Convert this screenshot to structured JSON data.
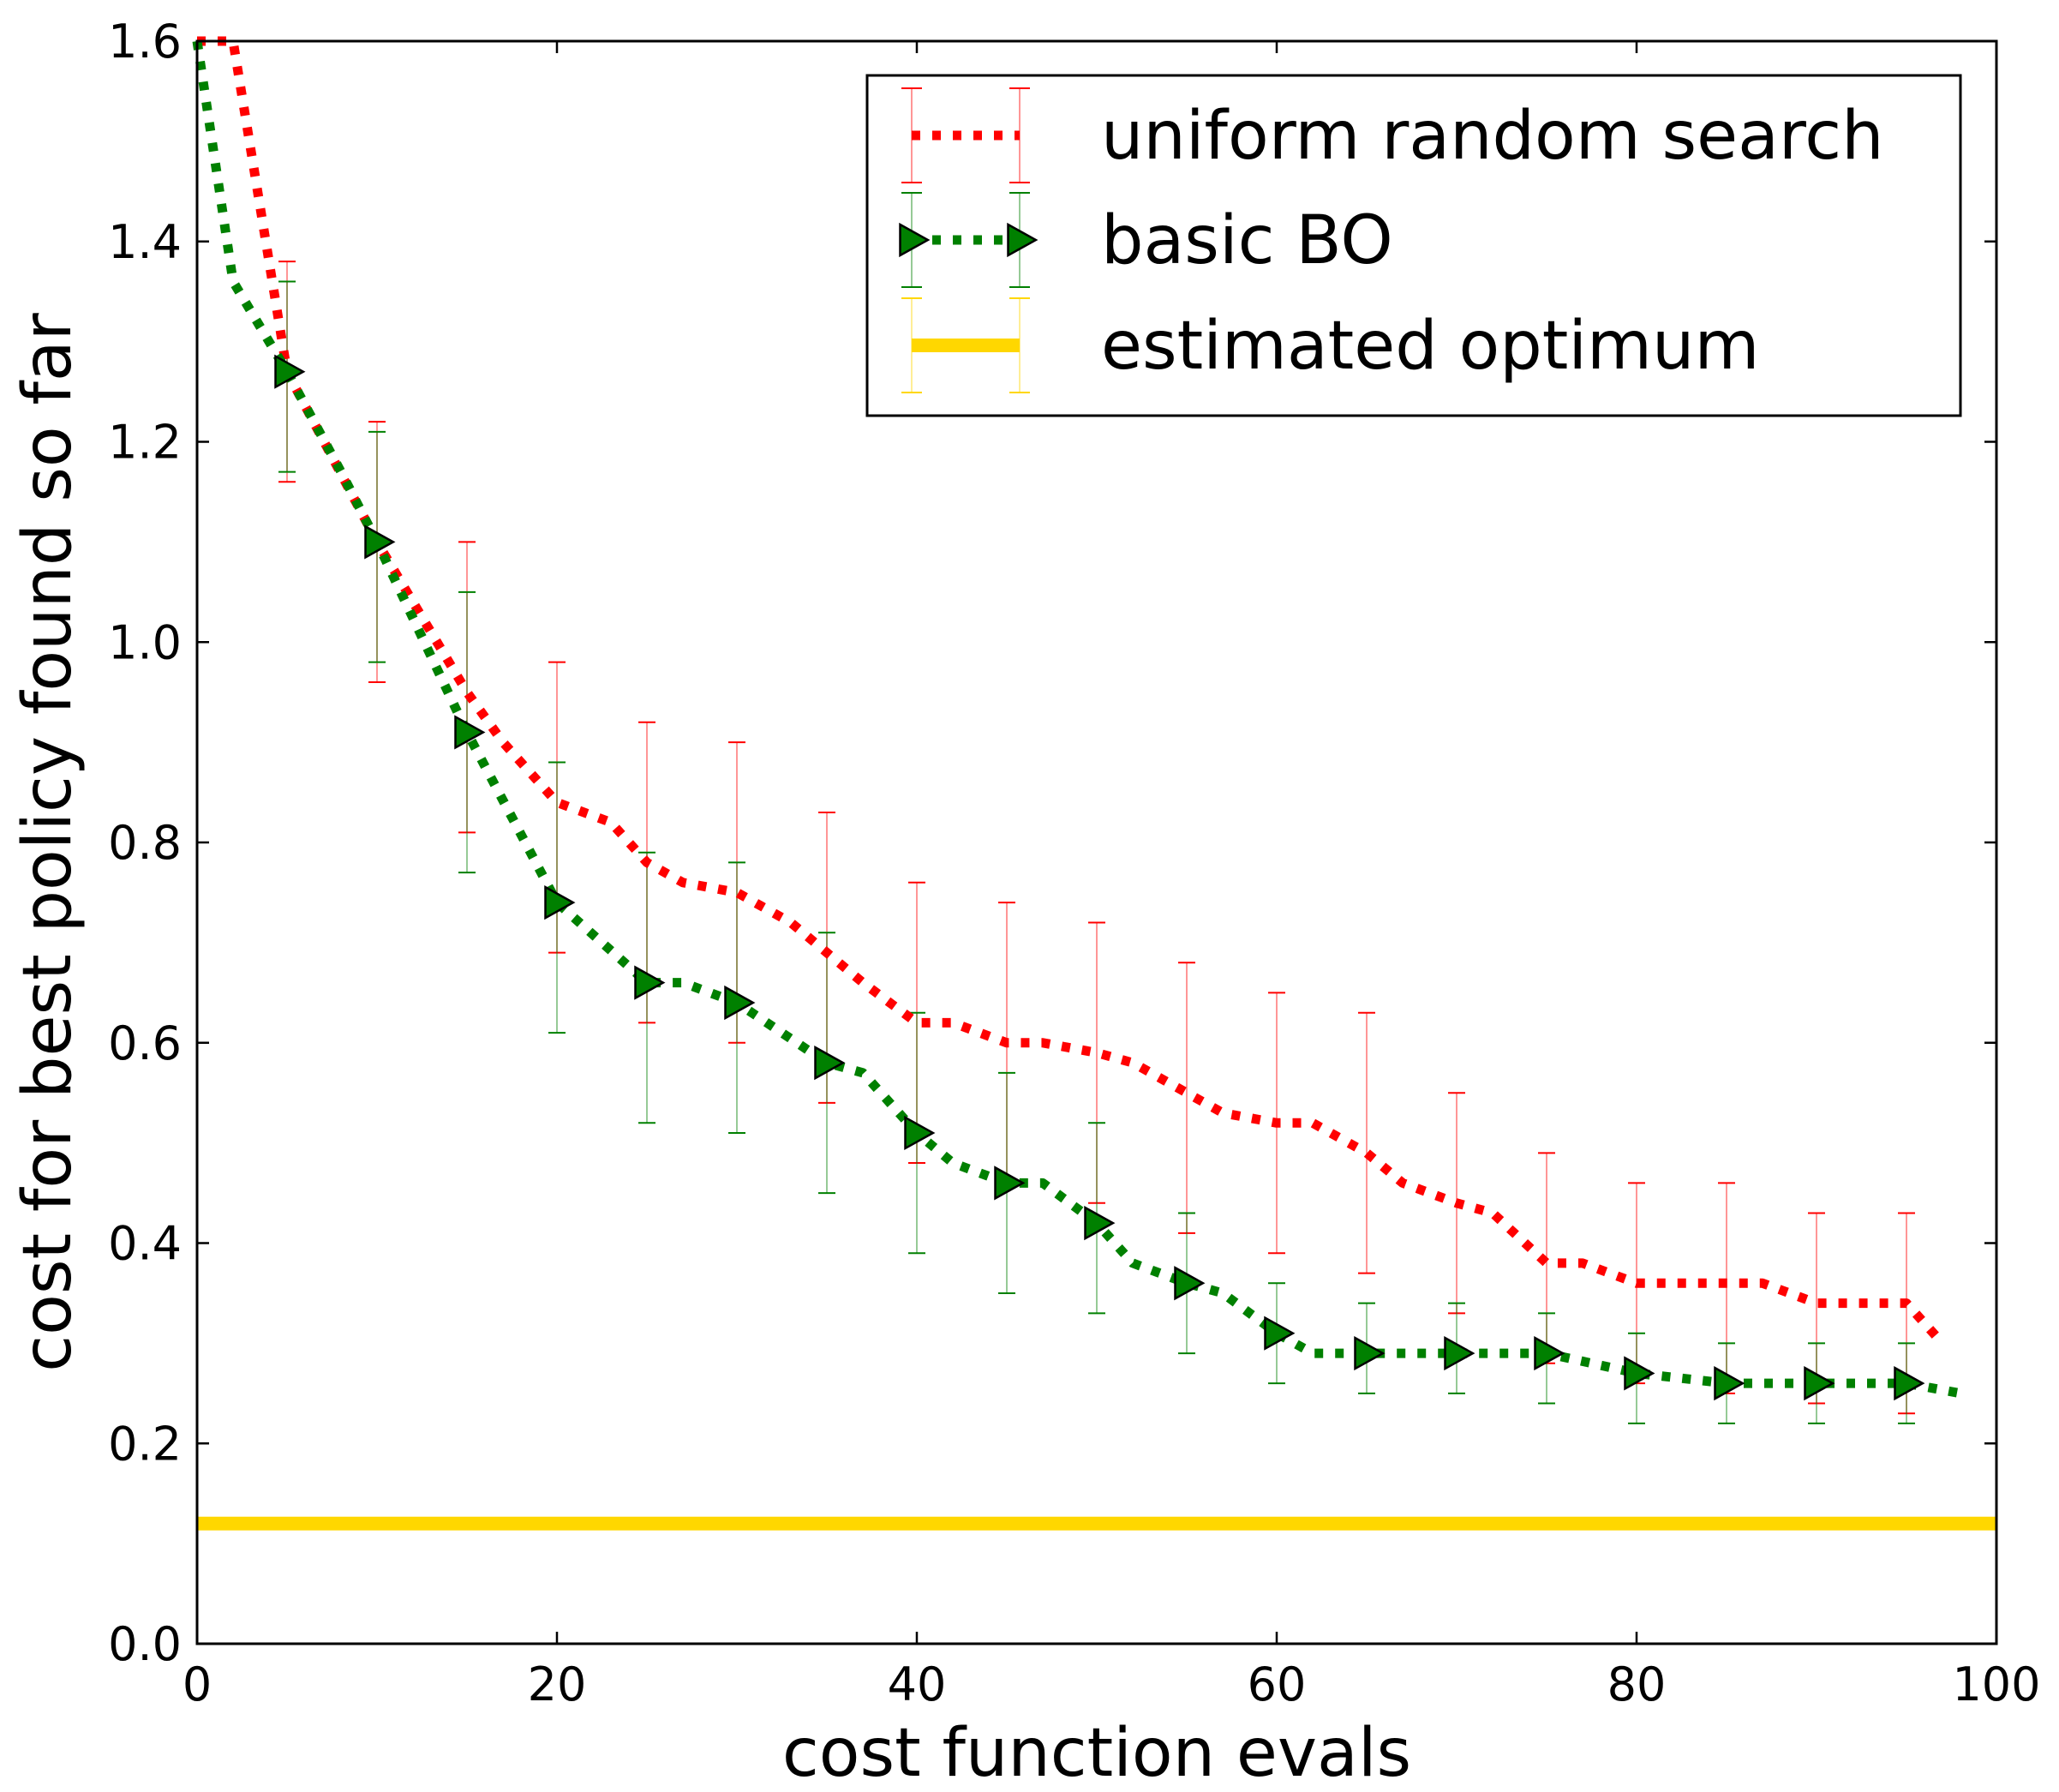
{
  "chart_data": {
    "type": "line",
    "title": "",
    "xlabel": "cost function evals",
    "ylabel": "cost for best policy found so far",
    "xlim": [
      0,
      100
    ],
    "ylim": [
      0.0,
      1.6
    ],
    "xticks": [
      0,
      20,
      40,
      60,
      80,
      100
    ],
    "xtick_labels": [
      "0",
      "20",
      "40",
      "60",
      "80",
      "100"
    ],
    "yticks": [
      0.0,
      0.2,
      0.4,
      0.6,
      0.8,
      1.0,
      1.2,
      1.4,
      1.6
    ],
    "ytick_labels": [
      "0.0",
      "0.2",
      "0.4",
      "0.6",
      "0.8",
      "1.0",
      "1.2",
      "1.4",
      "1.6"
    ],
    "grid": false,
    "legend_position": "top-right",
    "series": [
      {
        "name": "uniform random search",
        "color": "#ff0000",
        "style": "dotted",
        "marker": "none",
        "x": [
          0,
          2,
          5,
          10,
          15,
          17,
          20,
          23,
          25,
          27,
          30,
          33,
          35,
          37,
          40,
          42,
          45,
          47,
          50,
          52,
          55,
          57,
          60,
          62,
          65,
          67,
          70,
          72,
          75,
          77,
          80,
          82,
          85,
          87,
          90,
          92,
          95,
          97
        ],
        "y": [
          1.6,
          1.6,
          1.27,
          1.1,
          0.95,
          0.9,
          0.84,
          0.82,
          0.78,
          0.76,
          0.75,
          0.72,
          0.69,
          0.66,
          0.62,
          0.62,
          0.6,
          0.6,
          0.59,
          0.58,
          0.55,
          0.53,
          0.52,
          0.52,
          0.49,
          0.46,
          0.44,
          0.43,
          0.38,
          0.38,
          0.36,
          0.36,
          0.36,
          0.36,
          0.34,
          0.34,
          0.34,
          0.3
        ],
        "error_x": [
          5,
          10,
          15,
          20,
          25,
          30,
          35,
          40,
          45,
          50,
          55,
          60,
          65,
          70,
          75,
          80,
          85,
          90,
          95
        ],
        "error_low": [
          1.16,
          0.96,
          0.81,
          0.69,
          0.62,
          0.6,
          0.54,
          0.48,
          0.46,
          0.44,
          0.41,
          0.39,
          0.37,
          0.33,
          0.28,
          0.26,
          0.25,
          0.24,
          0.23
        ],
        "error_high": [
          1.38,
          1.22,
          1.1,
          0.98,
          0.92,
          0.9,
          0.83,
          0.76,
          0.74,
          0.72,
          0.68,
          0.65,
          0.63,
          0.55,
          0.49,
          0.46,
          0.46,
          0.43,
          0.43
        ],
        "legend_errbar_low": 1.47,
        "legend_errbar_high": 1.54
      },
      {
        "name": "basic BO",
        "color": "#008000",
        "style": "dotted",
        "marker": "triangle-right",
        "x": [
          0,
          2,
          5,
          8,
          10,
          15,
          20,
          25,
          27,
          30,
          35,
          37,
          40,
          42,
          45,
          47,
          50,
          52,
          55,
          57,
          60,
          62,
          65,
          70,
          75,
          80,
          85,
          90,
          95,
          98
        ],
        "y": [
          1.6,
          1.36,
          1.27,
          1.17,
          1.1,
          0.91,
          0.74,
          0.66,
          0.66,
          0.64,
          0.58,
          0.57,
          0.51,
          0.48,
          0.46,
          0.46,
          0.42,
          0.38,
          0.36,
          0.35,
          0.31,
          0.29,
          0.29,
          0.29,
          0.29,
          0.27,
          0.26,
          0.26,
          0.26,
          0.25
        ],
        "marker_x": [
          5,
          10,
          15,
          20,
          25,
          30,
          35,
          40,
          45,
          50,
          55,
          60,
          65,
          70,
          75,
          80,
          85,
          90,
          95
        ],
        "marker_y": [
          1.27,
          1.1,
          0.91,
          0.74,
          0.66,
          0.64,
          0.58,
          0.51,
          0.46,
          0.42,
          0.36,
          0.31,
          0.29,
          0.29,
          0.29,
          0.27,
          0.26,
          0.26,
          0.26
        ],
        "error_low": [
          1.17,
          0.98,
          0.77,
          0.61,
          0.52,
          0.51,
          0.45,
          0.39,
          0.35,
          0.33,
          0.29,
          0.26,
          0.25,
          0.25,
          0.24,
          0.22,
          0.22,
          0.22,
          0.22
        ],
        "error_high": [
          1.36,
          1.21,
          1.05,
          0.88,
          0.79,
          0.78,
          0.71,
          0.63,
          0.57,
          0.52,
          0.43,
          0.36,
          0.34,
          0.34,
          0.33,
          0.31,
          0.3,
          0.3,
          0.3
        ],
        "legend_errbar_low": 1.36,
        "legend_errbar_high": 1.44
      },
      {
        "name": "estimated optimum",
        "color": "#ffd700",
        "style": "solid",
        "marker": "none",
        "x": [
          0,
          100
        ],
        "y": [
          0.12,
          0.12
        ],
        "legend_errbar_low": 1.26,
        "legend_errbar_high": 1.33
      }
    ]
  }
}
